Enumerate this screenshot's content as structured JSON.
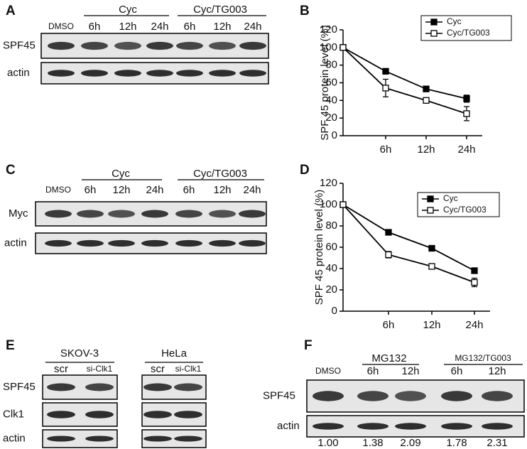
{
  "chart_data": [
    {
      "type": "line",
      "y_label": "SPF 45 protein level (%)",
      "categories": [
        null,
        "6h",
        "12h",
        "24h"
      ],
      "series": [
        {
          "name": "Cyc",
          "color": "#000000",
          "marker_fill": "#000000",
          "values": [
            100,
            73,
            53,
            42
          ],
          "errors": [
            0,
            2,
            2,
            4
          ]
        },
        {
          "name": "Cyc/TG003",
          "color": "#000000",
          "marker_fill": "#ffffff",
          "values": [
            100,
            54,
            40,
            25
          ],
          "errors": [
            0,
            10,
            2,
            8
          ]
        }
      ],
      "ylim": [
        0,
        120
      ],
      "yticks": [
        0,
        20,
        40,
        60,
        80,
        100,
        120
      ],
      "legend": "upper right"
    },
    {
      "type": "line",
      "y_label": "SPF 45 protein level (%)",
      "categories": [
        null,
        "6h",
        "12h",
        "24h"
      ],
      "series": [
        {
          "name": "Cyc",
          "color": "#000000",
          "marker_fill": "#000000",
          "values": [
            100,
            74,
            59,
            38
          ],
          "errors": [
            0,
            2,
            2,
            2
          ]
        },
        {
          "name": "Cyc/TG003",
          "color": "#000000",
          "marker_fill": "#ffffff",
          "values": [
            100,
            53,
            42,
            27
          ],
          "errors": [
            0,
            3,
            1,
            4
          ]
        }
      ],
      "ylim": [
        0,
        120
      ],
      "yticks": [
        0,
        20,
        40,
        60,
        80,
        100,
        120
      ],
      "legend": "upper right"
    }
  ],
  "panel_labels": [
    "A",
    "B",
    "C",
    "D",
    "E",
    "F"
  ],
  "blot_a": {
    "groups": [
      "Cyc",
      "Cyc/TG003"
    ],
    "lanes": [
      "DMSO",
      "6h",
      "12h",
      "24h",
      "6h",
      "12h",
      "24h"
    ],
    "rows": [
      "SPF45",
      "actin"
    ]
  },
  "blot_c": {
    "groups": [
      "Cyc",
      "Cyc/TG003"
    ],
    "lanes": [
      "DMSO",
      "6h",
      "12h",
      "24h",
      "6h",
      "12h",
      "24h"
    ],
    "rows": [
      "Myc",
      "actin"
    ]
  },
  "blot_e": {
    "groups": [
      {
        "name": "SKOV-3",
        "lanes": [
          "scr",
          "si-Clk1"
        ]
      },
      {
        "name": "HeLa",
        "lanes": [
          "scr",
          "si-Clk1"
        ]
      }
    ],
    "rows": [
      "SPF45",
      "Clk1",
      "actin"
    ]
  },
  "blot_f": {
    "groups": [
      "MG132",
      "MG132/TG003"
    ],
    "lanes": [
      "DMSO",
      "6h",
      "12h",
      "6h",
      "12h"
    ],
    "rows": [
      "SPF45",
      "actin"
    ],
    "ratios": [
      "1.00",
      "1.38",
      "2.09",
      "1.78",
      "2.31"
    ]
  }
}
